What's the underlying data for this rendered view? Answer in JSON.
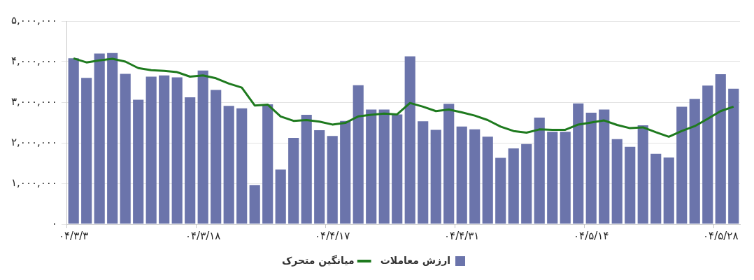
{
  "chart_data": {
    "type": "bar",
    "categories": [
      "۰۴/۳/۳",
      null,
      null,
      null,
      null,
      null,
      null,
      null,
      null,
      null,
      "۰۴/۳/۱۸",
      null,
      null,
      null,
      null,
      null,
      null,
      null,
      null,
      null,
      "۰۴/۴/۱۷",
      null,
      null,
      null,
      null,
      null,
      null,
      null,
      null,
      null,
      "۰۴/۴/۳۱",
      null,
      null,
      null,
      null,
      null,
      null,
      null,
      null,
      null,
      "۰۴/۵/۱۴",
      null,
      null,
      null,
      null,
      null,
      null,
      null,
      null,
      null,
      "۰۴/۵/۲۸",
      null
    ],
    "series": [
      {
        "name": "ارزش معاملات",
        "color": "#6b74ab",
        "values": [
          4080000,
          3600000,
          4200000,
          4210000,
          3700000,
          3060000,
          3630000,
          3660000,
          3610000,
          3120000,
          3780000,
          3300000,
          2910000,
          2850000,
          960000,
          2950000,
          1340000,
          2120000,
          2690000,
          2310000,
          2170000,
          2540000,
          3420000,
          2820000,
          2820000,
          2700000,
          4130000,
          2530000,
          2320000,
          2960000,
          2400000,
          2330000,
          2150000,
          1630000,
          1860000,
          1970000,
          2620000,
          2270000,
          2270000,
          2970000,
          2740000,
          2820000,
          2090000,
          1900000,
          2430000,
          1730000,
          1640000,
          2890000,
          3080000,
          3410000,
          3690000,
          3330000
        ]
      },
      {
        "name": "میانگین متحرک",
        "type": "line",
        "color": "#1e7a1e",
        "values": [
          4080000,
          3980000,
          4030000,
          4070000,
          4000000,
          3840000,
          3790000,
          3770000,
          3740000,
          3630000,
          3660000,
          3590000,
          3460000,
          3360000,
          2920000,
          2940000,
          2650000,
          2540000,
          2560000,
          2520000,
          2450000,
          2490000,
          2650000,
          2690000,
          2720000,
          2700000,
          2980000,
          2890000,
          2780000,
          2820000,
          2750000,
          2670000,
          2560000,
          2400000,
          2290000,
          2250000,
          2330000,
          2320000,
          2320000,
          2450000,
          2500000,
          2550000,
          2440000,
          2360000,
          2380000,
          2260000,
          2150000,
          2290000,
          2410000,
          2590000,
          2780000,
          2890000
        ]
      }
    ],
    "ylim": [
      0,
      5000000
    ],
    "yticks": [
      {
        "value": 0,
        "label": "۰"
      },
      {
        "value": 1000000,
        "label": "۱,۰۰۰,۰۰۰"
      },
      {
        "value": 2000000,
        "label": "۲,۰۰۰,۰۰۰"
      },
      {
        "value": 3000000,
        "label": "۳,۰۰۰,۰۰۰"
      },
      {
        "value": 4000000,
        "label": "۴,۰۰۰,۰۰۰"
      },
      {
        "value": 5000000,
        "label": "۵,۰۰۰,۰۰۰"
      }
    ],
    "grid": "y",
    "legend": "bottom",
    "line_style": "solid",
    "marker": "none"
  }
}
